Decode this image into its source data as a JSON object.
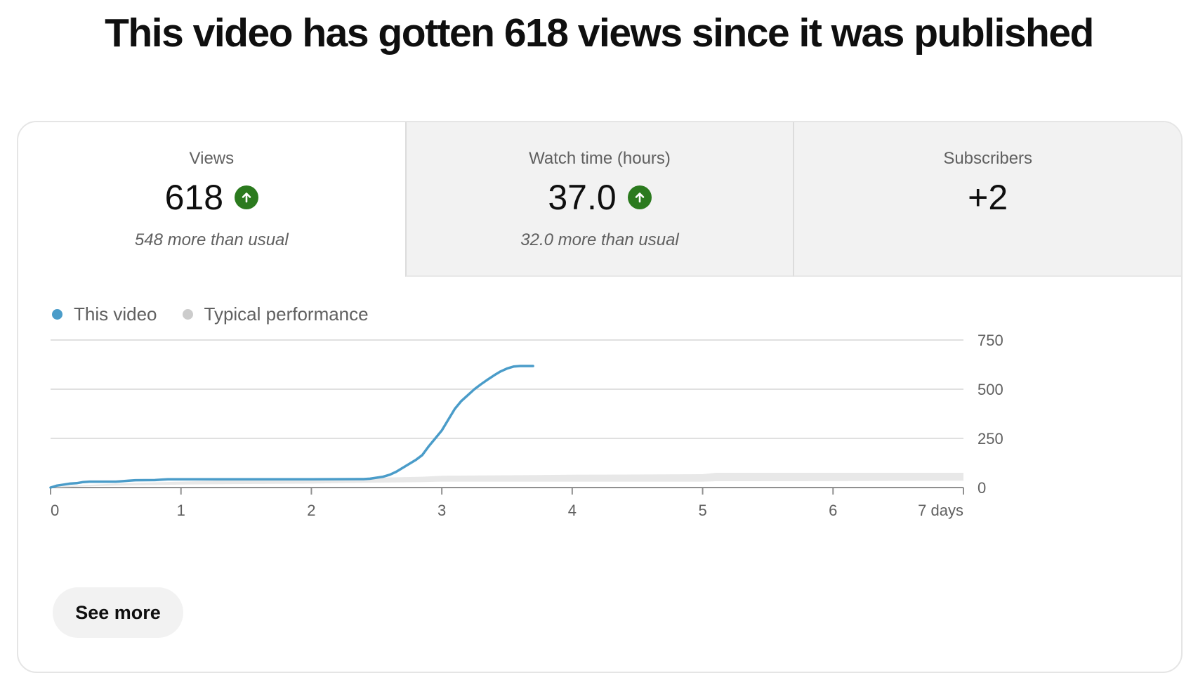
{
  "headline": "This video has gotten 618 views since it was published",
  "tabs": [
    {
      "label": "Views",
      "value": "618",
      "trend": "up",
      "note": "548 more than usual"
    },
    {
      "label": "Watch time (hours)",
      "value": "37.0",
      "trend": "up",
      "note": "32.0 more than usual"
    },
    {
      "label": "Subscribers",
      "value": "+2",
      "trend": "",
      "note": ""
    }
  ],
  "legend": [
    {
      "label": "This video",
      "color": "#4a9cc9"
    },
    {
      "label": "Typical performance",
      "color": "#cccccc"
    }
  ],
  "chart_data": {
    "type": "line",
    "x_ticks": [
      "0",
      "1",
      "2",
      "3",
      "4",
      "5",
      "6",
      "7 days"
    ],
    "y_ticks": [
      "750",
      "500",
      "250",
      "0"
    ],
    "xlim": [
      0,
      7
    ],
    "ylim": [
      0,
      750
    ],
    "grid": true,
    "legend_position": "top-left",
    "series": [
      {
        "name": "This video",
        "color": "#4a9cc9",
        "x": [
          0,
          0.05,
          0.1,
          0.15,
          0.2,
          0.25,
          0.3,
          0.5,
          0.55,
          0.6,
          0.65,
          0.8,
          0.85,
          0.9,
          1.0,
          1.5,
          2.0,
          2.4,
          2.45,
          2.5,
          2.55,
          2.6,
          2.65,
          2.7,
          2.75,
          2.8,
          2.85,
          2.9,
          2.95,
          3.0,
          3.05,
          3.1,
          3.15,
          3.2,
          3.25,
          3.3,
          3.35,
          3.4,
          3.45,
          3.5,
          3.55,
          3.6,
          3.65,
          3.7
        ],
        "y": [
          0,
          10,
          15,
          20,
          22,
          28,
          30,
          30,
          32,
          35,
          37,
          38,
          40,
          42,
          42,
          42,
          42,
          43,
          45,
          50,
          55,
          65,
          80,
          100,
          120,
          140,
          165,
          210,
          250,
          290,
          345,
          400,
          440,
          470,
          500,
          525,
          548,
          570,
          590,
          605,
          615,
          618,
          618,
          618
        ]
      },
      {
        "name": "Typical performance",
        "color": "#e8e8e8",
        "band": true,
        "x": [
          0,
          0.5,
          1.0,
          1.5,
          2.0,
          2.5,
          2.85,
          3.0,
          4.0,
          5.0,
          5.1,
          6.0,
          7.0
        ],
        "lower": [
          0,
          10,
          15,
          18,
          20,
          25,
          28,
          30,
          30,
          30,
          32,
          33,
          35
        ],
        "upper": [
          5,
          20,
          30,
          40,
          45,
          50,
          55,
          60,
          65,
          68,
          75,
          75,
          75
        ]
      }
    ]
  },
  "actions": {
    "see_more": "See more"
  }
}
